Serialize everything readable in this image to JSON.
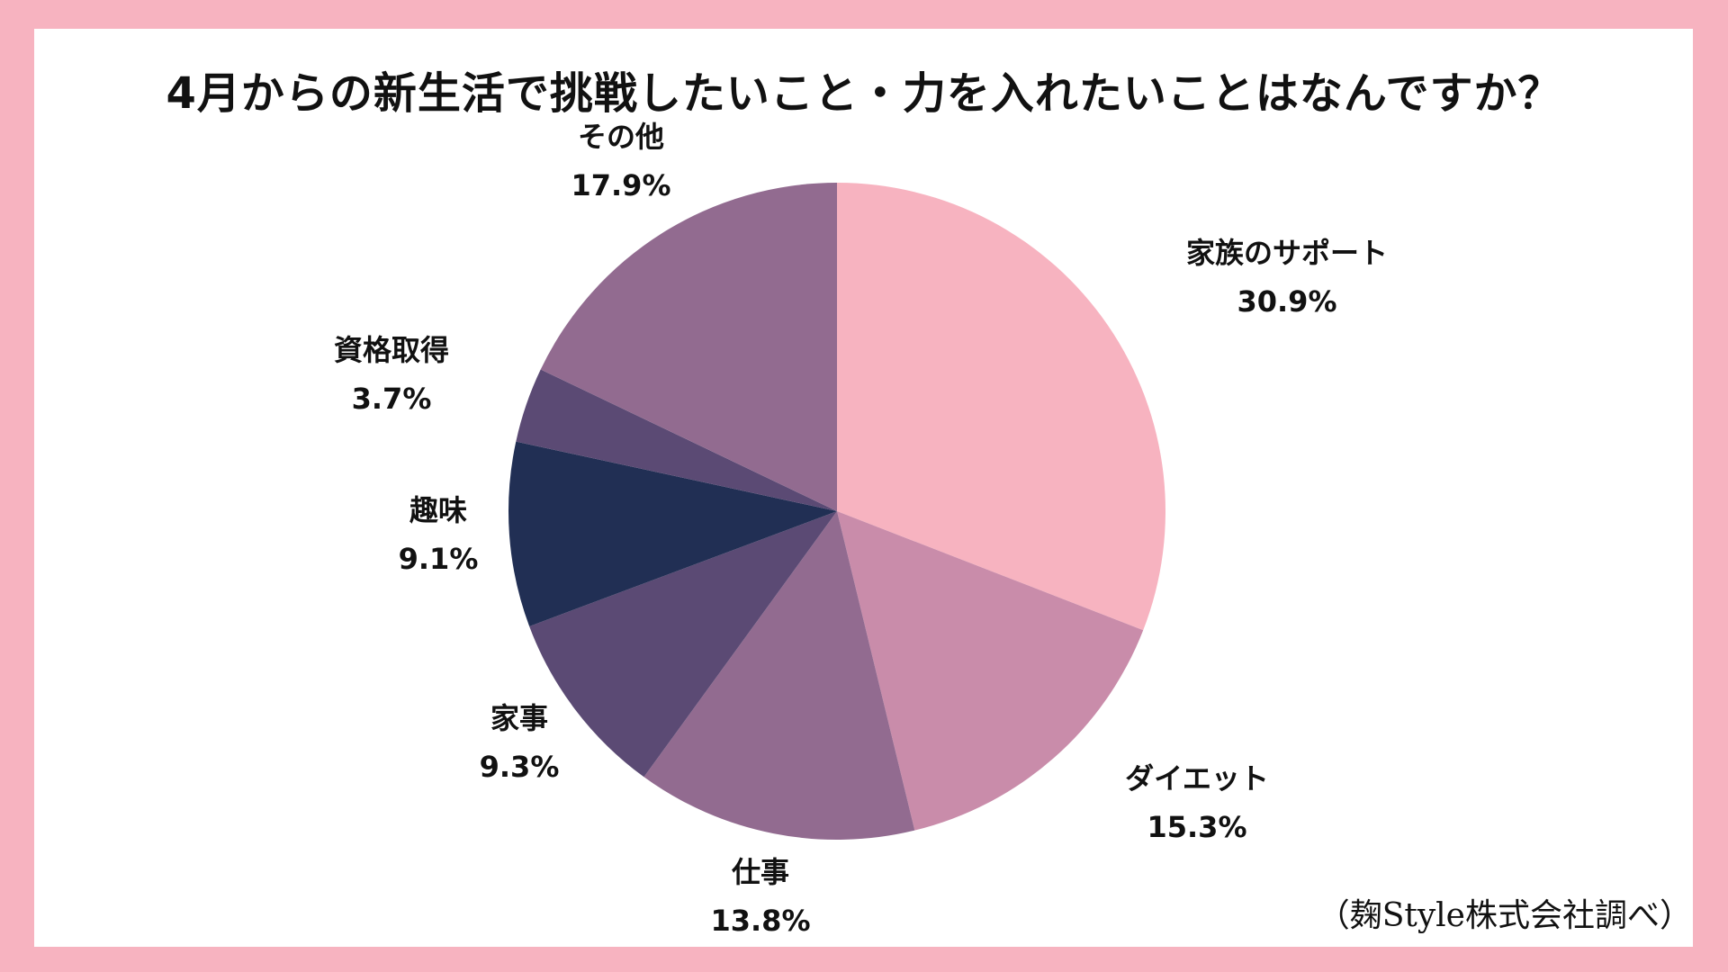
{
  "chart_data": {
    "type": "pie",
    "title": "4月からの新生活で挑戦したいこと・力を入れたいことはなんですか？",
    "categories": [
      "家族のサポート",
      "ダイエット",
      "仕事",
      "家事",
      "趣味",
      "資格取得",
      "その他"
    ],
    "values": [
      30.9,
      15.3,
      13.8,
      9.3,
      9.1,
      3.7,
      17.9
    ],
    "value_labels": [
      "30.9%",
      "15.3%",
      "13.8%",
      "9.3%",
      "9.1%",
      "3.7%",
      "17.9%"
    ],
    "colors": [
      "#f7b3c0",
      "#c98caa",
      "#926b90",
      "#5b4a74",
      "#212f54",
      "#5b4a74",
      "#926b90"
    ],
    "start_angle": "12 o'clock",
    "direction": "clockwise",
    "legend": "none (labels beside slices)"
  },
  "source_note": "（麹Style株式会社調べ）",
  "colors": {
    "border": "#f7b3c0",
    "background": "#ffffff",
    "text": "#111111"
  }
}
